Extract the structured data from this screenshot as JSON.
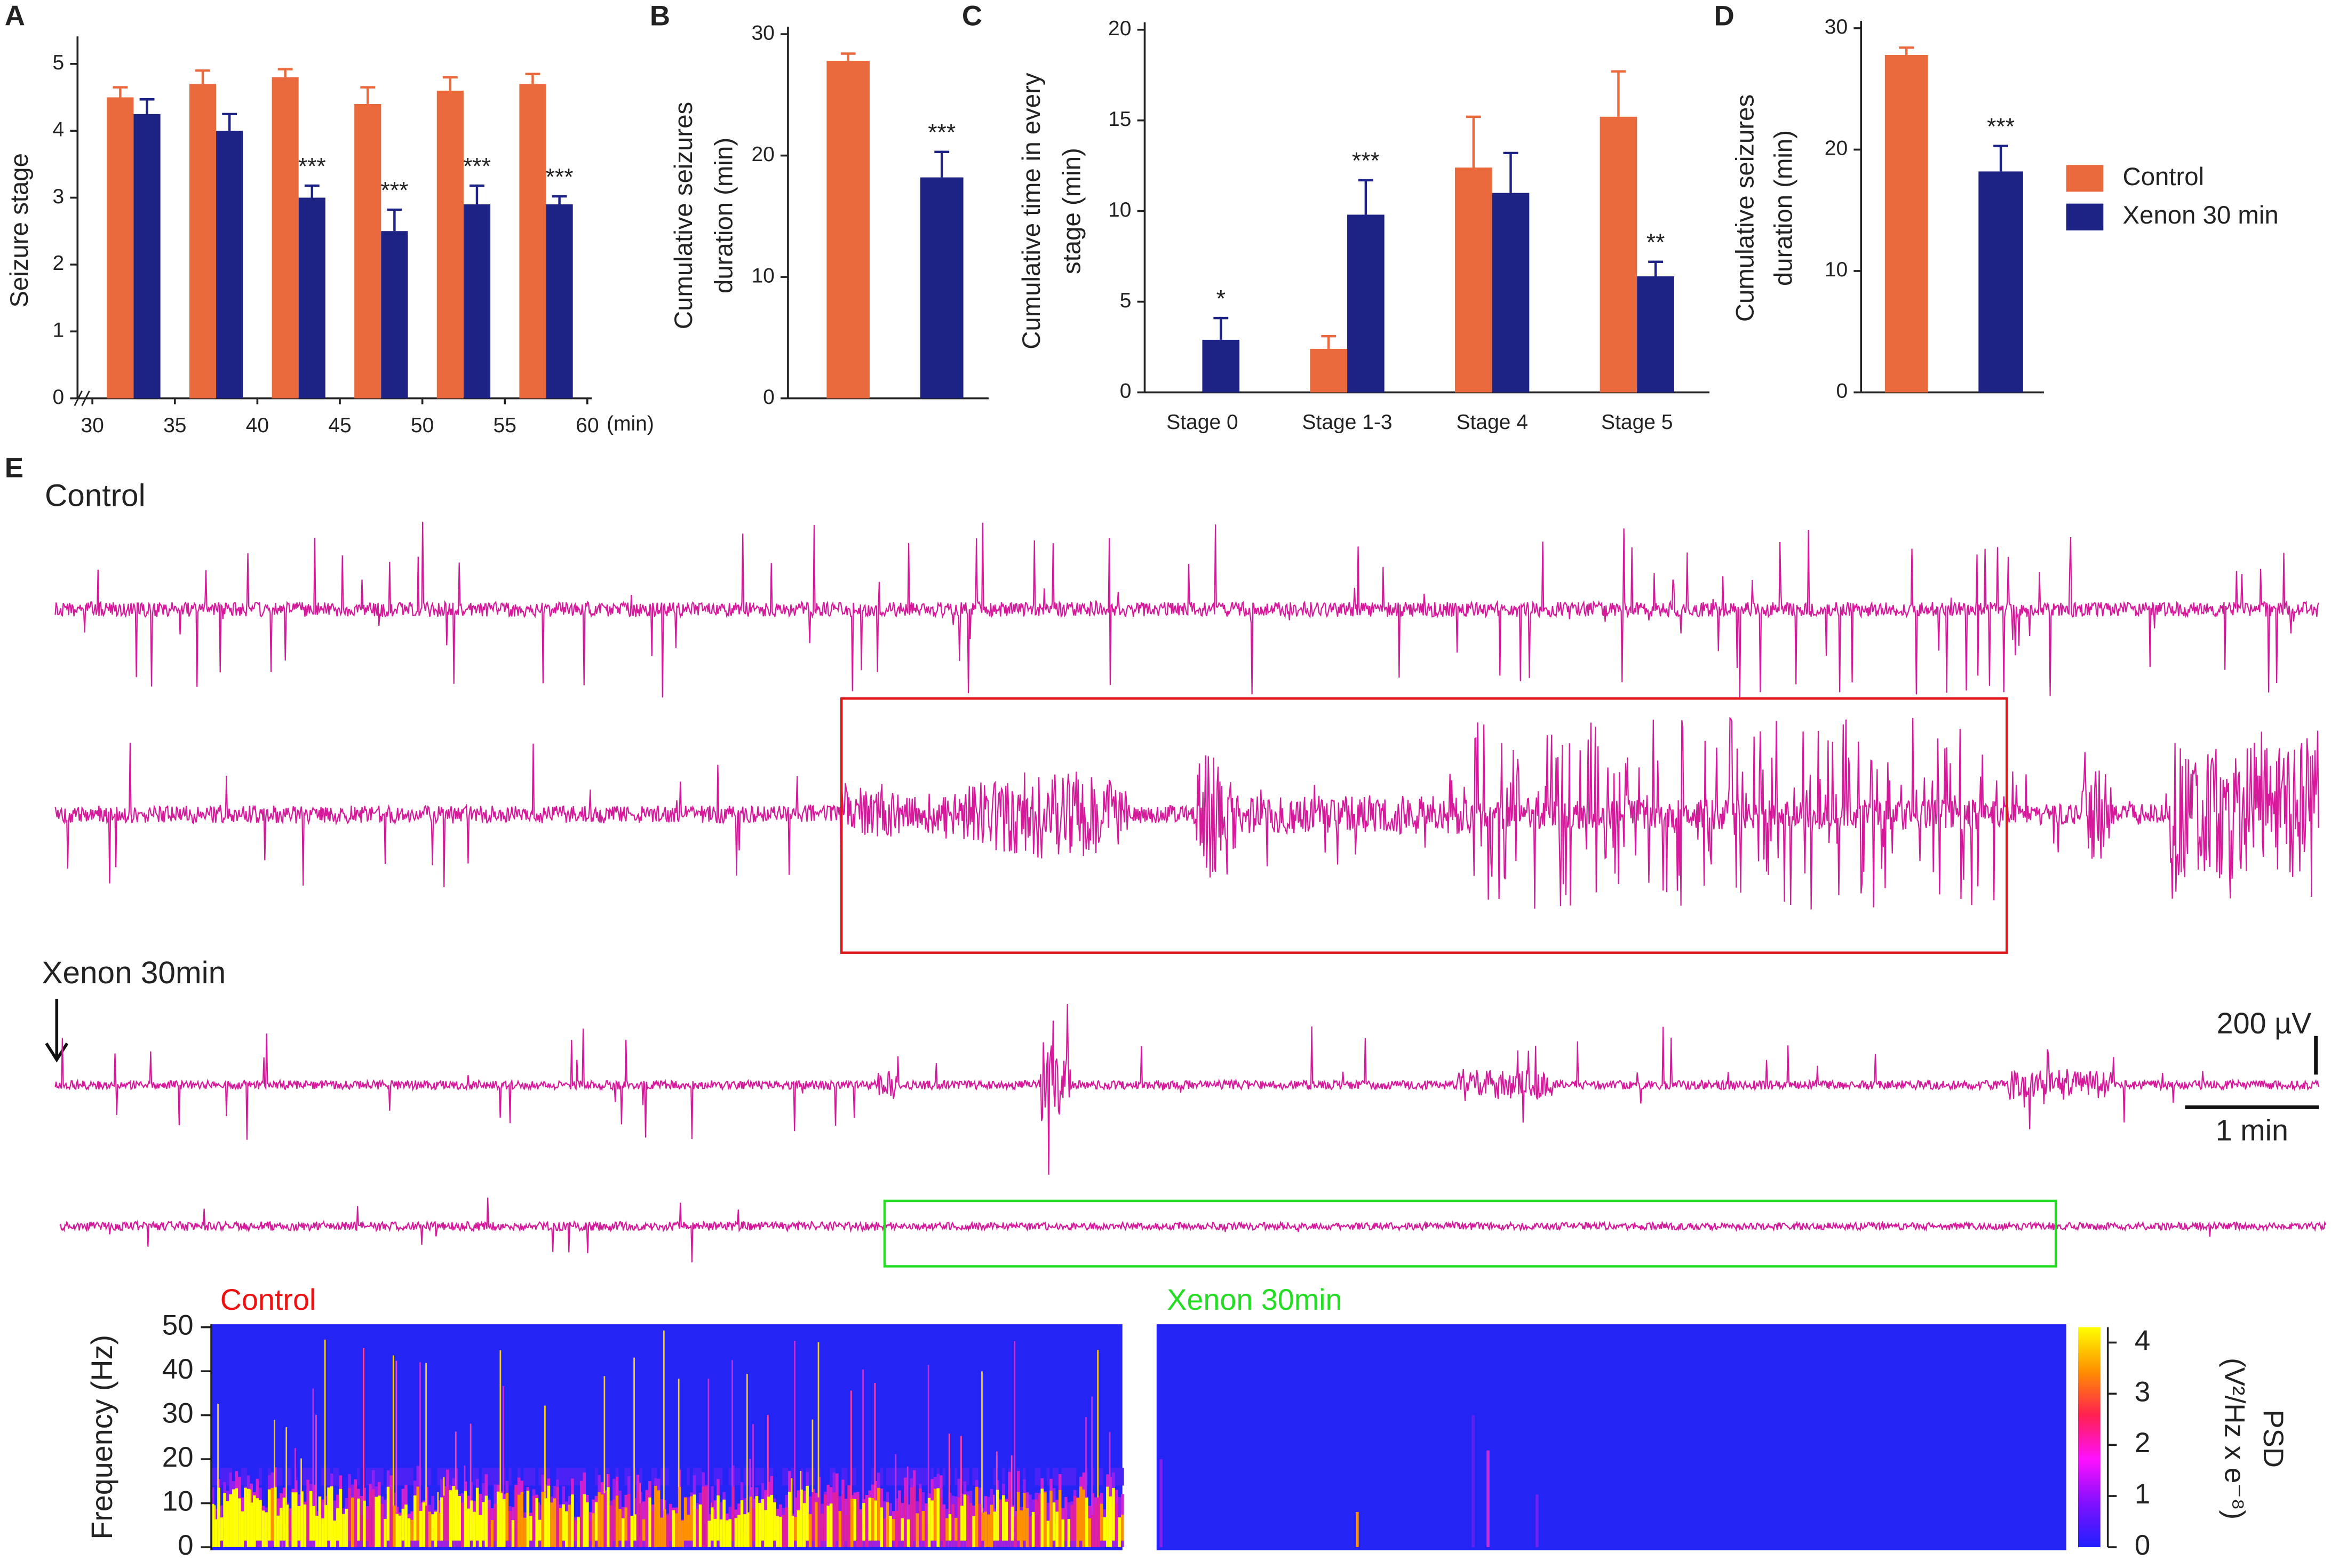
{
  "chart_data": [
    {
      "type": "bar",
      "label": "A",
      "ylabel": "Seizure stage",
      "xlabel": "(min)",
      "x": [
        32.5,
        37.5,
        42.5,
        47.5,
        52.5,
        57.5
      ],
      "xlim": [
        30,
        60
      ],
      "xticks": [
        30,
        35,
        40,
        45,
        50,
        55,
        60
      ],
      "ylim": [
        0,
        5.3
      ],
      "yticks": [
        0,
        1,
        2,
        3,
        4,
        5
      ],
      "series": [
        {
          "color": "#ea6a3e",
          "values": [
            4.5,
            4.7,
            4.8,
            4.4,
            4.6,
            4.7
          ],
          "errors": [
            0.15,
            0.2,
            0.12,
            0.25,
            0.2,
            0.15
          ]
        },
        {
          "color": "#1d2385",
          "values": [
            4.25,
            4.0,
            3.0,
            2.5,
            2.9,
            2.9
          ],
          "errors": [
            0.22,
            0.25,
            0.18,
            0.32,
            0.28,
            0.12
          ],
          "significance": [
            null,
            null,
            "***",
            "***",
            "***",
            "***"
          ]
        }
      ]
    },
    {
      "type": "bar",
      "label": "B",
      "ylabel": [
        "Cumulative seizures",
        "duration (min)"
      ],
      "ylim": [
        0,
        30
      ],
      "yticks": [
        0,
        10,
        20,
        30
      ],
      "series": [
        {
          "color": "#ea6a3e",
          "values": [
            27.8
          ],
          "errors": [
            0.6
          ]
        },
        {
          "color": "#1d2385",
          "values": [
            18.2
          ],
          "errors": [
            2.1
          ],
          "significance": [
            "***"
          ]
        }
      ]
    },
    {
      "type": "bar",
      "label": "C",
      "ylabel": [
        "Cumulative time in every",
        "stage (min)"
      ],
      "categories": [
        "Stage 0",
        "Stage 1-3",
        "Stage 4",
        "Stage 5"
      ],
      "ylim": [
        0,
        20
      ],
      "yticks": [
        0,
        5,
        10,
        15,
        20
      ],
      "series": [
        {
          "color": "#ea6a3e",
          "values": [
            0,
            2.4,
            12.4,
            15.2
          ],
          "errors": [
            0,
            0.7,
            2.8,
            2.5
          ]
        },
        {
          "color": "#1d2385",
          "values": [
            2.9,
            9.8,
            11.0,
            6.4
          ],
          "errors": [
            1.2,
            1.9,
            2.2,
            0.8
          ],
          "significance": [
            "*",
            "***",
            null,
            "**"
          ]
        }
      ]
    },
    {
      "type": "bar",
      "label": "D",
      "ylabel": [
        "Cumulative seizures",
        "duration (min)"
      ],
      "ylim": [
        0,
        30
      ],
      "yticks": [
        0,
        10,
        20,
        30
      ],
      "series": [
        {
          "name": "Control",
          "color": "#ea6a3e",
          "values": [
            27.8
          ],
          "errors": [
            0.6
          ]
        },
        {
          "name": "Xenon 30 min",
          "color": "#1d2385",
          "values": [
            18.2
          ],
          "errors": [
            2.1
          ],
          "significance": [
            "***"
          ]
        }
      ]
    }
  ],
  "eeg_panel": {
    "label": "E",
    "control_label": "Control",
    "xenon_label": "Xenon 30min",
    "scale_bar_voltage": "200 µV",
    "scale_bar_time": "1 min",
    "spectrogram": {
      "control_title": "Control",
      "xenon_title": "Xenon 30min",
      "ylabel": "Frequency (Hz)",
      "ylim": [
        0,
        50
      ],
      "yticks": [
        0,
        10,
        20,
        30,
        40,
        50
      ],
      "colorbar_label": [
        "PSD",
        "(V²/Hz x e⁻⁸)"
      ],
      "colorbar_lim": [
        0,
        4.3
      ],
      "colorbar_ticks": [
        0,
        1,
        2,
        3,
        4
      ]
    }
  }
}
